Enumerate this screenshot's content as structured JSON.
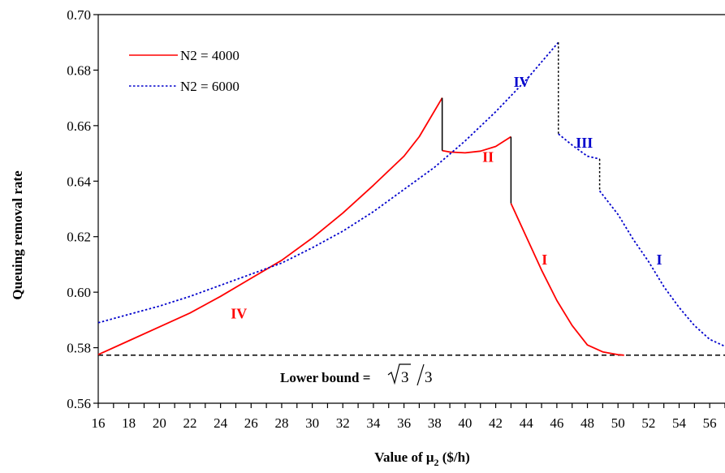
{
  "chart_data": {
    "type": "line",
    "title": "",
    "xlabel": "Value of μ",
    "xlabel_sub": "2",
    "xlabel_unit": " ($/h)",
    "ylabel": "Queuing removal rate",
    "xlim": [
      16,
      57
    ],
    "ylim": [
      0.56,
      0.7
    ],
    "xticks": [
      16,
      18,
      20,
      22,
      24,
      26,
      28,
      30,
      32,
      34,
      36,
      38,
      40,
      42,
      44,
      46,
      48,
      50,
      52,
      54,
      56
    ],
    "yticks": [
      "0.56",
      "0.58",
      "0.60",
      "0.62",
      "0.64",
      "0.66",
      "0.68",
      "0.70"
    ],
    "legend_position": "top-left",
    "series": [
      {
        "name": "N2 = 4000",
        "color": "#ff0000",
        "style": "solid",
        "segments": [
          {
            "region": "IV",
            "points": [
              [
                16,
                0.5775
              ],
              [
                18,
                0.5825
              ],
              [
                20,
                0.5875
              ],
              [
                22,
                0.5925
              ],
              [
                24,
                0.5985
              ],
              [
                26,
                0.605
              ],
              [
                28,
                0.6115
              ],
              [
                30,
                0.6195
              ],
              [
                32,
                0.6285
              ],
              [
                34,
                0.6385
              ],
              [
                36,
                0.649
              ],
              [
                37,
                0.656
              ],
              [
                38.5,
                0.67
              ]
            ]
          },
          {
            "region": "II",
            "points": [
              [
                38.5,
                0.651
              ],
              [
                39,
                0.6505
              ],
              [
                40,
                0.6502
              ],
              [
                41,
                0.6508
              ],
              [
                42,
                0.6525
              ],
              [
                43,
                0.656
              ]
            ]
          },
          {
            "region": "I",
            "points": [
              [
                43,
                0.632
              ],
              [
                44,
                0.62
              ],
              [
                45,
                0.608
              ],
              [
                46,
                0.597
              ],
              [
                47,
                0.588
              ],
              [
                48,
                0.581
              ],
              [
                49,
                0.5785
              ],
              [
                50,
                0.5775
              ],
              [
                50.4,
                0.5773
              ]
            ]
          }
        ],
        "jumps": [
          {
            "x": 38.5,
            "from": 0.67,
            "to": 0.651
          },
          {
            "x": 43,
            "from": 0.656,
            "to": 0.632
          }
        ]
      },
      {
        "name": "N2 = 6000",
        "color": "#0000cc",
        "style": "dotted",
        "segments": [
          {
            "region": "IV",
            "points": [
              [
                16,
                0.589
              ],
              [
                18,
                0.592
              ],
              [
                20,
                0.595
              ],
              [
                22,
                0.5985
              ],
              [
                24,
                0.6025
              ],
              [
                26,
                0.6065
              ],
              [
                28,
                0.6105
              ],
              [
                30,
                0.616
              ],
              [
                32,
                0.622
              ],
              [
                34,
                0.629
              ],
              [
                36,
                0.637
              ],
              [
                38,
                0.645
              ],
              [
                40,
                0.6545
              ],
              [
                42,
                0.665
              ],
              [
                44,
                0.6765
              ],
              [
                46.1,
                0.69
              ]
            ]
          },
          {
            "region": "III",
            "points": [
              [
                46.1,
                0.657
              ],
              [
                47,
                0.653
              ],
              [
                48,
                0.649
              ],
              [
                48.8,
                0.648
              ]
            ]
          },
          {
            "region": "I",
            "points": [
              [
                48.8,
                0.6365
              ],
              [
                50,
                0.628
              ],
              [
                51,
                0.619
              ],
              [
                52,
                0.611
              ],
              [
                53,
                0.602
              ],
              [
                54,
                0.5945
              ],
              [
                55,
                0.588
              ],
              [
                56,
                0.583
              ],
              [
                57,
                0.5805
              ]
            ]
          }
        ],
        "jumps": [
          {
            "x": 46.1,
            "from": 0.69,
            "to": 0.657
          },
          {
            "x": 48.8,
            "from": 0.648,
            "to": 0.6365
          }
        ]
      }
    ],
    "lower_bound": {
      "value": 0.5773,
      "label": "Lower bound = ",
      "expr_root": "3",
      "expr_den": "3"
    },
    "region_labels": [
      {
        "text": "IV",
        "series": 0,
        "x": 25.2,
        "y": 0.5905
      },
      {
        "text": "II",
        "series": 0,
        "x": 41.5,
        "y": 0.647
      },
      {
        "text": "I",
        "series": 0,
        "x": 45.2,
        "y": 0.61
      },
      {
        "text": "IV",
        "series": 1,
        "x": 43.7,
        "y": 0.674
      },
      {
        "text": "III",
        "series": 1,
        "x": 47.8,
        "y": 0.652
      },
      {
        "text": "I",
        "series": 1,
        "x": 52.7,
        "y": 0.61
      }
    ]
  }
}
